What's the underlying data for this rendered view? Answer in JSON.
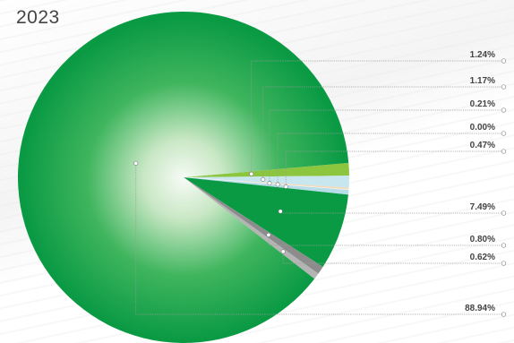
{
  "year": "2023",
  "chart_data": {
    "type": "pie",
    "values": [
      1.24,
      1.17,
      0.21,
      0.0,
      0.47,
      7.49,
      0.8,
      0.62,
      88.94
    ],
    "labels": [
      "1.24%",
      "1.17%",
      "0.21%",
      "0.00%",
      "0.47%",
      "7.49%",
      "0.80%",
      "0.62%",
      "88.94%"
    ],
    "colors": [
      "#8cc63f",
      "#c8e6ee",
      "#f4d9b8",
      "#ffffff",
      "#b7dde8",
      "#0b9a44",
      "#8c8c8c",
      "#b4b4b4",
      "#0b9a44"
    ],
    "title": "",
    "legend": "right"
  }
}
